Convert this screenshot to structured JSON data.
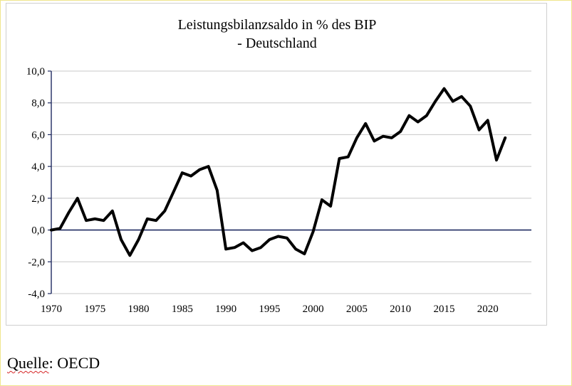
{
  "chart_data": {
    "type": "line",
    "title": "Leistungsbilanzsaldo in % des BIP",
    "subtitle": "- Deutschland",
    "x": [
      1970,
      1971,
      1972,
      1973,
      1974,
      1975,
      1976,
      1977,
      1978,
      1979,
      1980,
      1981,
      1982,
      1983,
      1984,
      1985,
      1986,
      1987,
      1988,
      1989,
      1990,
      1991,
      1992,
      1993,
      1994,
      1995,
      1996,
      1997,
      1998,
      1999,
      2000,
      2001,
      2002,
      2003,
      2004,
      2005,
      2006,
      2007,
      2008,
      2009,
      2010,
      2011,
      2012,
      2013,
      2014,
      2015,
      2016,
      2017,
      2018,
      2019,
      2020,
      2021,
      2022
    ],
    "series": [
      {
        "values": [
          0.0,
          0.1,
          1.1,
          2.0,
          0.6,
          0.7,
          0.6,
          1.2,
          -0.6,
          -1.6,
          -0.6,
          0.7,
          0.6,
          1.2,
          2.4,
          3.6,
          3.4,
          3.8,
          4.0,
          2.5,
          -1.2,
          -1.1,
          -0.8,
          -1.3,
          -1.1,
          -0.6,
          -0.4,
          -0.5,
          -1.2,
          -1.5,
          -0.1,
          1.9,
          1.5,
          4.5,
          4.6,
          5.8,
          6.7,
          5.6,
          5.9,
          5.8,
          6.2,
          7.2,
          6.8,
          7.2,
          8.1,
          8.9,
          8.1,
          8.4,
          7.8,
          6.3,
          6.9,
          4.4,
          5.8
        ]
      }
    ],
    "x_ticks": [
      1970,
      1975,
      1980,
      1985,
      1990,
      1995,
      2000,
      2005,
      2010,
      2015,
      2020
    ],
    "y_ticks": [
      -4,
      -2,
      0,
      2,
      4,
      6,
      8,
      10
    ],
    "y_tick_labels": [
      "-4,0",
      "-2,0",
      "0,0",
      "2,0",
      "4,0",
      "6,0",
      "8,0",
      "10,0"
    ],
    "xlim": [
      1970,
      2025
    ],
    "ylim": [
      -4,
      10
    ],
    "xlabel": "",
    "ylabel": "",
    "grid": "horizontal",
    "legend": "none",
    "line_color": "#000000",
    "zero_axis_color": "#1f2a60"
  },
  "source": {
    "word": "Quelle",
    "rest": ": OECD"
  }
}
